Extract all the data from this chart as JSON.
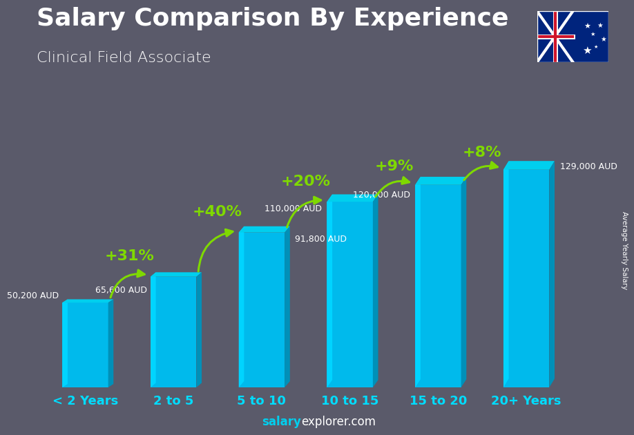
{
  "title": "Salary Comparison By Experience",
  "subtitle": "Clinical Field Associate",
  "categories": [
    "< 2 Years",
    "2 to 5",
    "5 to 10",
    "10 to 15",
    "15 to 20",
    "20+ Years"
  ],
  "values": [
    50200,
    65600,
    91800,
    110000,
    120000,
    129000
  ],
  "labels": [
    "50,200 AUD",
    "65,600 AUD",
    "91,800 AUD",
    "110,000 AUD",
    "120,000 AUD",
    "129,000 AUD"
  ],
  "pct_labels": [
    "+31%",
    "+40%",
    "+20%",
    "+9%",
    "+8%"
  ],
  "bar_color_main": "#00BAEC",
  "bar_color_left": "#00D4FF",
  "bar_color_right": "#0090B8",
  "bar_color_top": "#00CFEE",
  "pct_color": "#7FD900",
  "label_color": "white",
  "title_color": "white",
  "subtitle_color": "white",
  "bg_color": "#3a3a4a",
  "footer_salary_color": "#00CFEE",
  "footer_explorer_color": "white",
  "ylabel": "Average Yearly Salary",
  "ylim": [
    0,
    160000
  ],
  "figsize": [
    9.0,
    6.41
  ],
  "dpi": 100,
  "bar_width": 0.52,
  "label_fontsize": 10,
  "pct_fontsize": 16,
  "title_fontsize": 26,
  "subtitle_fontsize": 16,
  "tick_fontsize": 13
}
